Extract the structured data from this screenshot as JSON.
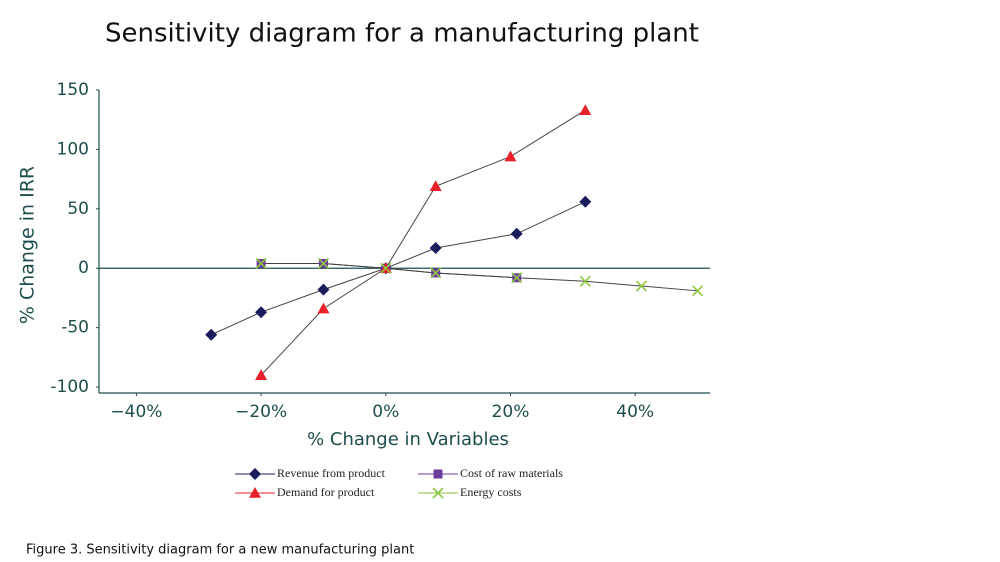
{
  "chart_data": {
    "type": "line",
    "title": "Sensitivity diagram for a manufacturing plant",
    "x_label": "% Change in Variables",
    "y_label": "% Change in IRR",
    "caption": "Figure 3. Sensitivity diagram for a new manufacturing plant",
    "xlim": [
      -46,
      52
    ],
    "ylim": [
      -105,
      150
    ],
    "xticks": [
      {
        "value": -40,
        "label": "−40%"
      },
      {
        "value": -20,
        "label": "−20%"
      },
      {
        "value": 0,
        "label": "0%"
      },
      {
        "value": 20,
        "label": "20%"
      },
      {
        "value": 40,
        "label": "40%"
      }
    ],
    "yticks": [
      -100,
      -50,
      0,
      50,
      100,
      150
    ],
    "line_color": "#444444",
    "series": [
      {
        "name": "Revenue from product",
        "color": "#1b1b5e",
        "marker": "diamond",
        "x": [
          -28,
          -20,
          -10,
          0,
          8,
          21,
          32
        ],
        "values": [
          -56,
          -37,
          -18,
          0,
          17,
          29,
          56
        ]
      },
      {
        "name": "Cost of raw materials",
        "color": "#6a3d9a",
        "marker": "square",
        "x": [
          -20,
          -10,
          0,
          8,
          21
        ],
        "values": [
          4,
          4,
          0,
          -4,
          -8
        ]
      },
      {
        "name": "Demand for product",
        "color": "#e8202a",
        "marker": "triangle",
        "x": [
          -20,
          -10,
          0,
          8,
          20,
          32
        ],
        "values": [
          -90,
          -34,
          0,
          69,
          94,
          133
        ]
      },
      {
        "name": "Energy costs",
        "color": "#8dc63f",
        "marker": "x",
        "x": [
          -20,
          -10,
          0,
          8,
          21,
          32,
          41,
          50
        ],
        "values": [
          4,
          4,
          0,
          -4,
          -8,
          -11,
          -15,
          -19
        ]
      }
    ]
  }
}
